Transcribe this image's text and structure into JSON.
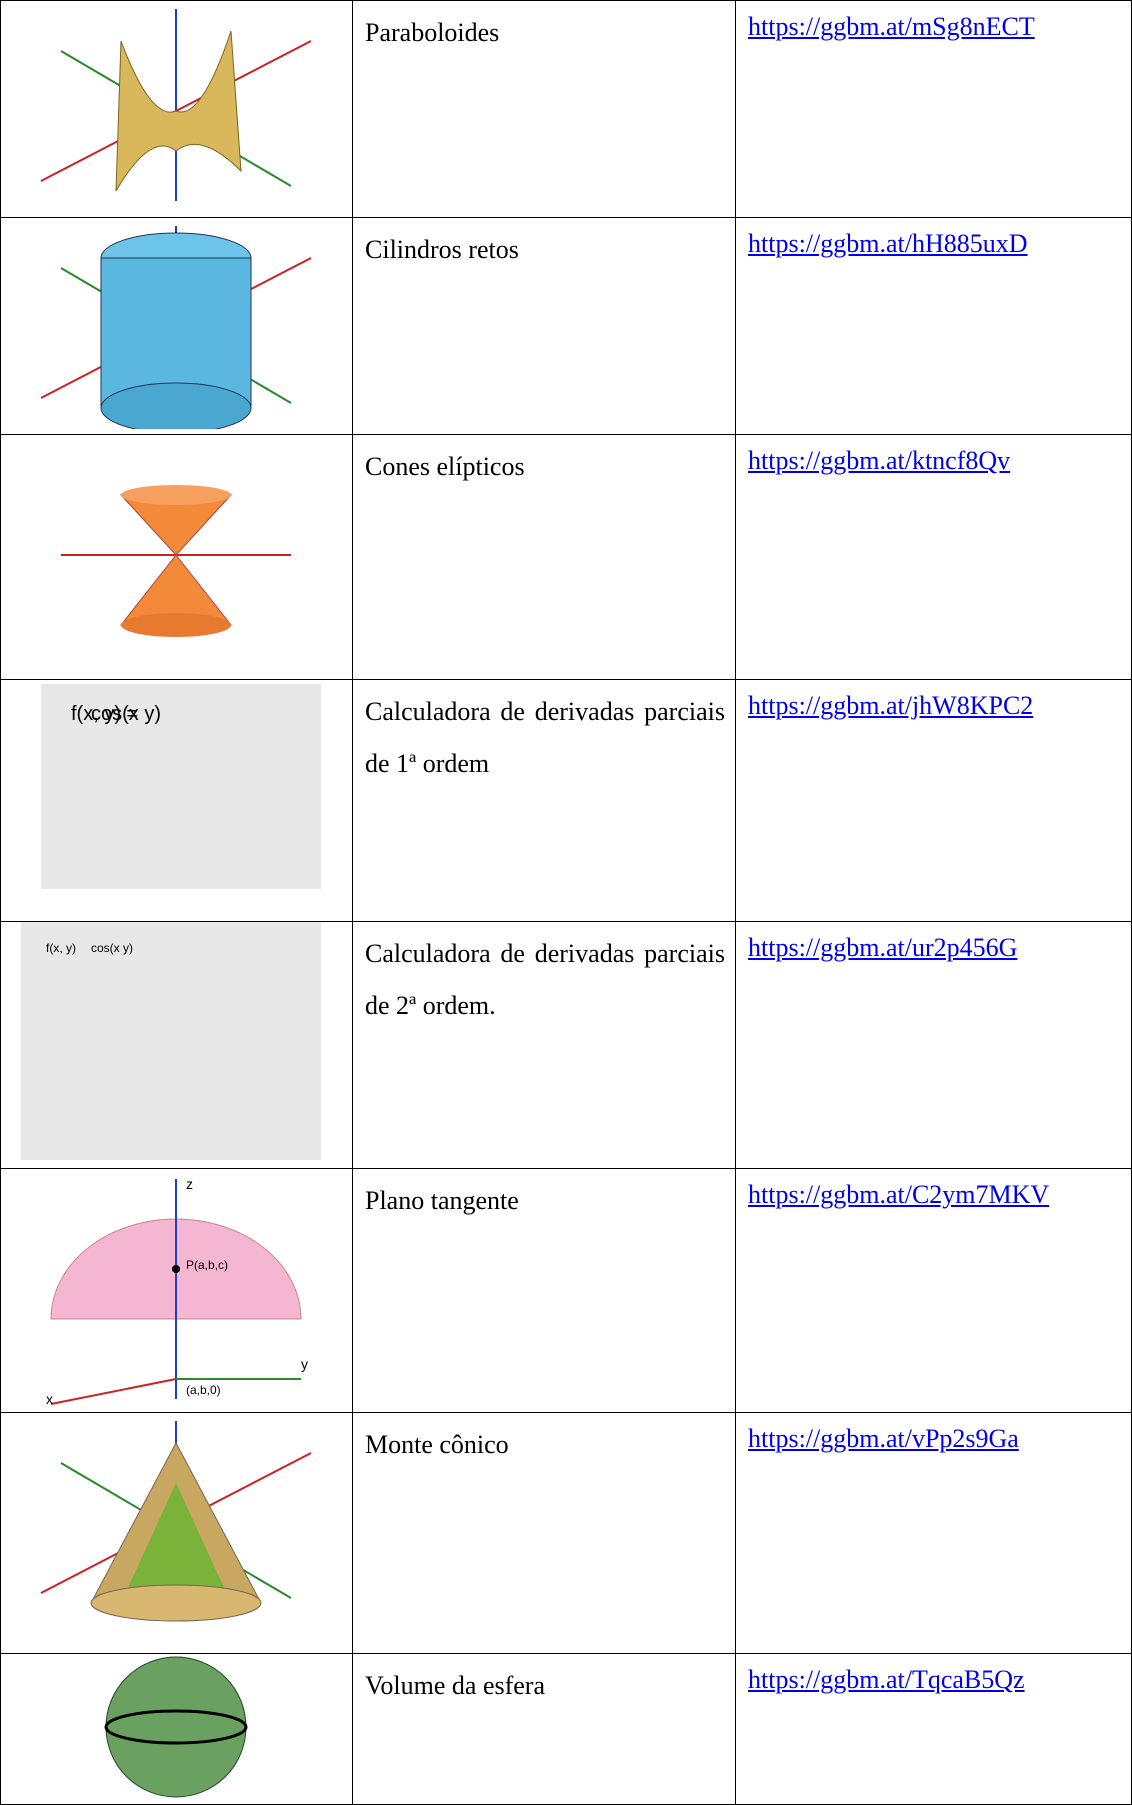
{
  "table": {
    "rows": [
      {
        "title": "Paraboloides",
        "link": "https://ggbm.at/mSg8nECT"
      },
      {
        "title": "Cilindros retos",
        "link": "https://ggbm.at/hH885uxD"
      },
      {
        "title": "Cones elípticos",
        "link": "https://ggbm.at/ktncf8Qv"
      },
      {
        "title": "Calculadora de derivadas parciais de 1ª ordem",
        "link": "https://ggbm.at/jhW8KPC2",
        "image_text": [
          "f(x, y) =",
          "cos(x y)"
        ]
      },
      {
        "title": "Calculadora de derivadas parciais de 2ª ordem.",
        "link": "https://ggbm.at/ur2p456G",
        "image_text": [
          "f(x, y)",
          "cos(x y)"
        ]
      },
      {
        "title": "Plano tangente",
        "link": "https://ggbm.at/C2ym7MKV",
        "image_text": [
          "P(a,b,c)",
          "(a,b,0)",
          "x",
          "y",
          "z"
        ]
      },
      {
        "title": "Monte cônico",
        "link": "https://ggbm.at/vPp2s9Ga"
      },
      {
        "title": "Volume da esfera",
        "link": "https://ggbm.at/TqcaB5Qz"
      }
    ]
  }
}
